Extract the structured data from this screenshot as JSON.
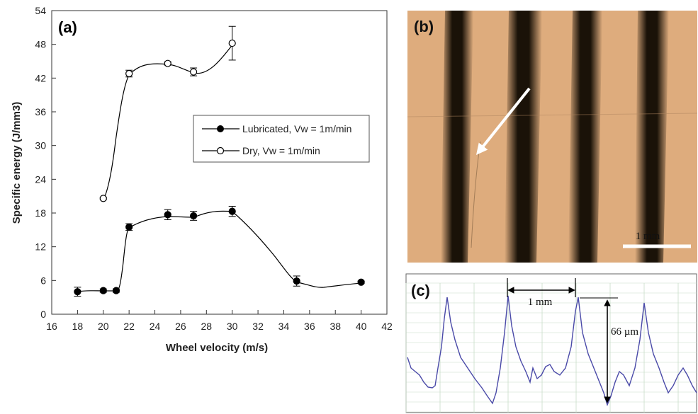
{
  "panels": {
    "a_label": "(a)",
    "b_label": "(b)",
    "c_label": "(c)"
  },
  "chart_data": {
    "type": "line",
    "xlabel": "Wheel velocity (m/s)",
    "ylabel": "Specific energy (J/mm3)",
    "xlim": [
      16,
      42
    ],
    "ylim": [
      0,
      54
    ],
    "xticks": [
      16,
      18,
      20,
      22,
      24,
      26,
      28,
      30,
      32,
      34,
      36,
      38,
      40,
      42
    ],
    "yticks": [
      0,
      6,
      12,
      18,
      24,
      30,
      36,
      42,
      48,
      54
    ],
    "grid": false,
    "legend_position": "center-right",
    "series": [
      {
        "name": "Lubricated, Vw = 1m/min",
        "marker": "filled-circle",
        "color": "#000000",
        "points": [
          {
            "x": 18,
            "y": 4.0,
            "err": 0.8
          },
          {
            "x": 20,
            "y": 4.2,
            "err": 0.3
          },
          {
            "x": 21,
            "y": 4.2,
            "err": 0.3
          },
          {
            "x": 22,
            "y": 15.5,
            "err": 0.6
          },
          {
            "x": 25,
            "y": 17.7,
            "err": 0.9
          },
          {
            "x": 27,
            "y": 17.5,
            "err": 0.8
          },
          {
            "x": 30,
            "y": 18.3,
            "err": 0.9
          },
          {
            "x": 35,
            "y": 5.9,
            "err": 0.9
          },
          {
            "x": 40,
            "y": 5.7,
            "err": 0.2
          }
        ]
      },
      {
        "name": "Dry, Vw = 1m/min",
        "marker": "open-circle",
        "color": "#000000",
        "points": [
          {
            "x": 20,
            "y": 20.6,
            "err": 0.2
          },
          {
            "x": 22,
            "y": 42.8,
            "err": 0.6
          },
          {
            "x": 25,
            "y": 44.6,
            "err": 0.3
          },
          {
            "x": 27,
            "y": 43.1,
            "err": 0.7
          },
          {
            "x": 30,
            "y": 48.2,
            "err": 3.0
          }
        ]
      }
    ]
  },
  "micrograph": {
    "scale_label": "1 mm",
    "background_color": "#dba777",
    "stripe_color": "#1a1208"
  },
  "profile": {
    "spacing_label": "1 mm",
    "height_label": "66 µm",
    "trace_color": "#4a4aa8",
    "grid_color": "#c8dcc8"
  }
}
